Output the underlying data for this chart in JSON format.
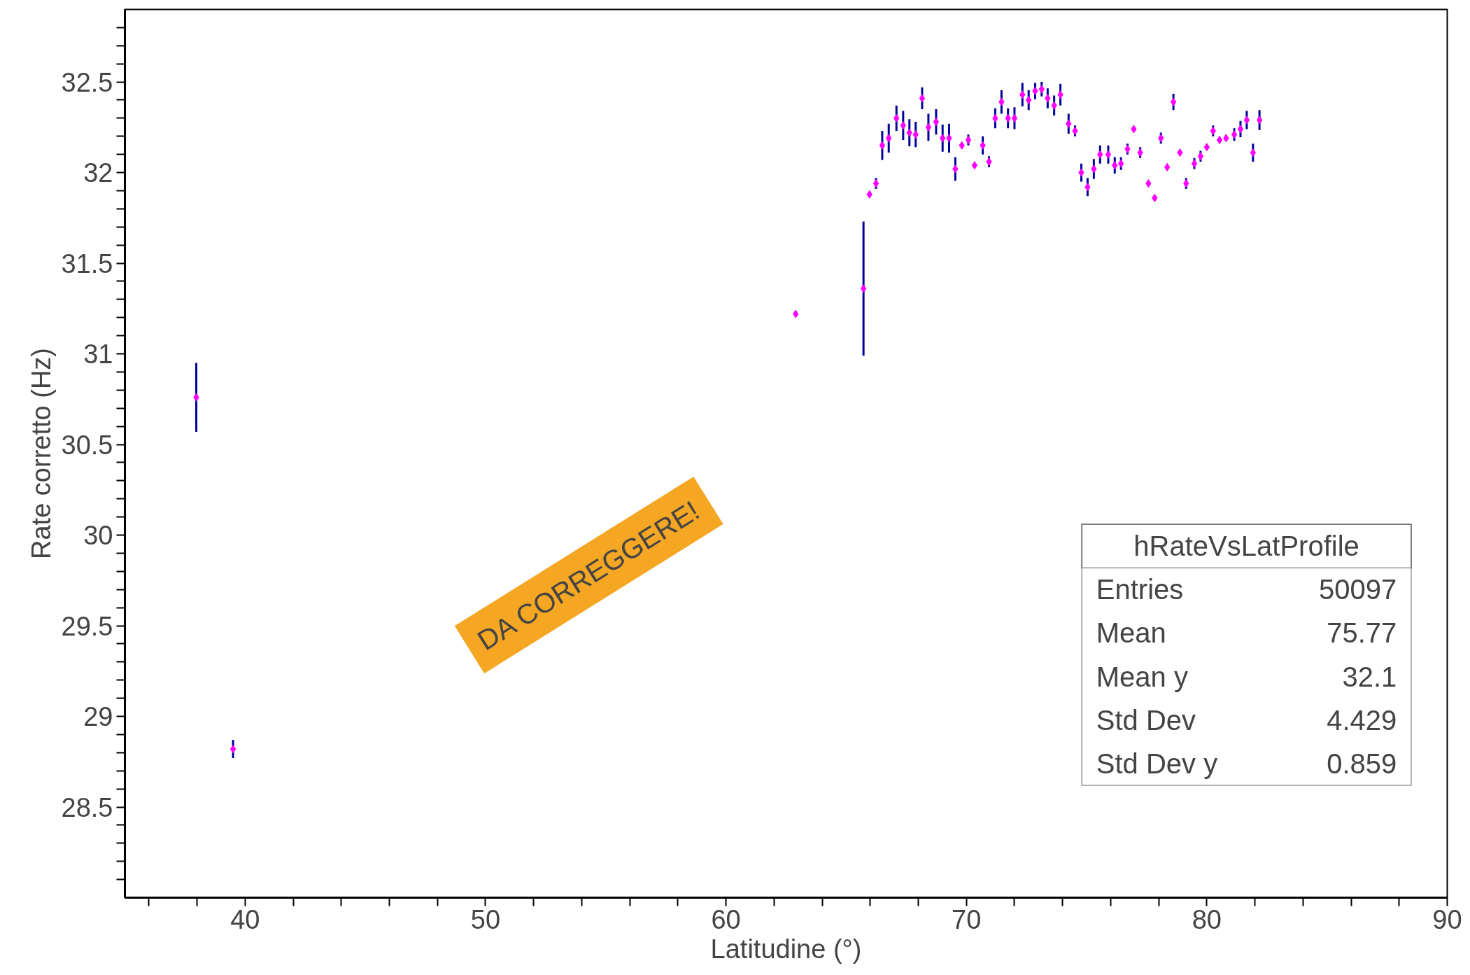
{
  "chart_data": {
    "type": "scatter",
    "xlabel": "Latitudine (°)",
    "ylabel": "Rate corretto (Hz)",
    "xlim": [
      35,
      90
    ],
    "ylim": [
      28.0,
      32.9
    ],
    "xticks": [
      {
        "value": 36,
        "label": null
      },
      {
        "value": 38,
        "label": null
      },
      40,
      {
        "value": 42,
        "label": null
      },
      {
        "value": 44,
        "label": null
      },
      {
        "value": 46,
        "label": null
      },
      {
        "value": 48,
        "label": null
      },
      50,
      {
        "value": 52,
        "label": null
      },
      {
        "value": 54,
        "label": null
      },
      {
        "value": 56,
        "label": null
      },
      {
        "value": 58,
        "label": null
      },
      60,
      {
        "value": 62,
        "label": null
      },
      {
        "value": 64,
        "label": null
      },
      {
        "value": 66,
        "label": null
      },
      {
        "value": 68,
        "label": null
      },
      70,
      {
        "value": 72,
        "label": null
      },
      {
        "value": 74,
        "label": null
      },
      {
        "value": 76,
        "label": null
      },
      {
        "value": 78,
        "label": null
      },
      80,
      {
        "value": 82,
        "label": null
      },
      {
        "value": 84,
        "label": null
      },
      {
        "value": 86,
        "label": null
      },
      {
        "value": 88,
        "label": null
      },
      90
    ],
    "yticks": [
      {
        "value": 28.1,
        "label": null
      },
      {
        "value": 28.2,
        "label": null
      },
      {
        "value": 28.3,
        "label": null
      },
      {
        "value": 28.4,
        "label": null
      },
      28.5,
      {
        "value": 28.6,
        "label": null
      },
      {
        "value": 28.7,
        "label": null
      },
      {
        "value": 28.8,
        "label": null
      },
      {
        "value": 28.9,
        "label": null
      },
      29,
      {
        "value": 29.1,
        "label": null
      },
      {
        "value": 29.2,
        "label": null
      },
      {
        "value": 29.3,
        "label": null
      },
      {
        "value": 29.4,
        "label": null
      },
      29.5,
      {
        "value": 29.6,
        "label": null
      },
      {
        "value": 29.7,
        "label": null
      },
      {
        "value": 29.8,
        "label": null
      },
      {
        "value": 29.9,
        "label": null
      },
      30,
      {
        "value": 30.1,
        "label": null
      },
      {
        "value": 30.2,
        "label": null
      },
      {
        "value": 30.3,
        "label": null
      },
      {
        "value": 30.4,
        "label": null
      },
      30.5,
      {
        "value": 30.6,
        "label": null
      },
      {
        "value": 30.7,
        "label": null
      },
      {
        "value": 30.8,
        "label": null
      },
      {
        "value": 30.9,
        "label": null
      },
      31,
      {
        "value": 31.1,
        "label": null
      },
      {
        "value": 31.2,
        "label": null
      },
      {
        "value": 31.3,
        "label": null
      },
      {
        "value": 31.4,
        "label": null
      },
      31.5,
      {
        "value": 31.6,
        "label": null
      },
      {
        "value": 31.7,
        "label": null
      },
      {
        "value": 31.8,
        "label": null
      },
      {
        "value": 31.9,
        "label": null
      },
      32,
      {
        "value": 32.1,
        "label": null
      },
      {
        "value": 32.2,
        "label": null
      },
      {
        "value": 32.3,
        "label": null
      },
      {
        "value": 32.4,
        "label": null
      },
      32.5,
      {
        "value": 32.6,
        "label": null
      },
      {
        "value": 32.7,
        "label": null
      },
      {
        "value": 32.8,
        "label": null
      }
    ],
    "grid": false,
    "marker": "diamond",
    "series": [
      {
        "color": "#ff00ff",
        "x": [
          37.97,
          39.5,
          62.9,
          65.72,
          65.97,
          66.24,
          66.5,
          66.77,
          67.09,
          67.37,
          67.63,
          67.89,
          68.16,
          68.42,
          68.74,
          69.01,
          69.28,
          69.54,
          69.81,
          70.08,
          70.34,
          70.68,
          70.94,
          71.2,
          71.46,
          71.73,
          72.0,
          72.33,
          72.59,
          72.86,
          73.13,
          73.38,
          73.65,
          73.91,
          74.25,
          74.52,
          74.78,
          75.04,
          75.3,
          75.56,
          75.9,
          76.17,
          76.43,
          76.7,
          76.96,
          77.23,
          77.57,
          77.83,
          78.09,
          78.35,
          78.61,
          78.88,
          79.14,
          79.48,
          79.74,
          80.0,
          80.26,
          80.53,
          80.8,
          81.14,
          81.4,
          81.66,
          81.92,
          82.19
        ],
        "values": [
          30.76,
          28.82,
          31.22,
          31.36,
          31.88,
          31.94,
          32.15,
          32.19,
          32.3,
          32.26,
          32.22,
          32.21,
          32.41,
          32.25,
          32.28,
          32.19,
          32.19,
          32.02,
          32.15,
          32.18,
          32.04,
          32.15,
          32.06,
          32.3,
          32.39,
          32.3,
          32.3,
          32.43,
          32.4,
          32.45,
          32.46,
          32.41,
          32.37,
          32.43,
          32.27,
          32.23,
          32.0,
          31.92,
          32.02,
          32.1,
          32.1,
          32.04,
          32.05,
          32.13,
          32.24,
          32.11,
          31.94,
          31.86,
          32.19,
          32.03,
          32.39,
          32.11,
          31.94,
          32.05,
          32.09,
          32.14,
          32.23,
          32.18,
          32.19,
          32.21,
          32.24,
          32.29,
          32.11,
          32.29
        ],
        "errors": [
          0.19,
          0.05,
          null,
          0.37,
          null,
          0.03,
          0.08,
          0.08,
          0.07,
          0.08,
          0.075,
          0.07,
          0.06,
          0.075,
          0.07,
          0.075,
          0.08,
          0.065,
          null,
          0.03,
          null,
          0.05,
          0.03,
          0.055,
          0.065,
          0.055,
          0.06,
          0.065,
          0.055,
          0.045,
          0.04,
          0.055,
          0.055,
          0.06,
          0.055,
          0.03,
          0.05,
          0.05,
          0.055,
          0.05,
          0.05,
          0.045,
          0.035,
          0.03,
          null,
          0.03,
          null,
          null,
          0.03,
          null,
          0.045,
          null,
          0.03,
          0.03,
          0.03,
          null,
          0.03,
          null,
          null,
          0.035,
          0.045,
          0.05,
          0.05,
          0.055
        ]
      }
    ],
    "annotations": [
      "hRateVsLatProfile",
      "Entries",
      "50097",
      "Mean",
      "75.77",
      "Mean y",
      "32.1",
      "Std Dev",
      "4.429",
      "Std Dev y",
      "0.859",
      "DA CORREGGERE!"
    ]
  }
}
